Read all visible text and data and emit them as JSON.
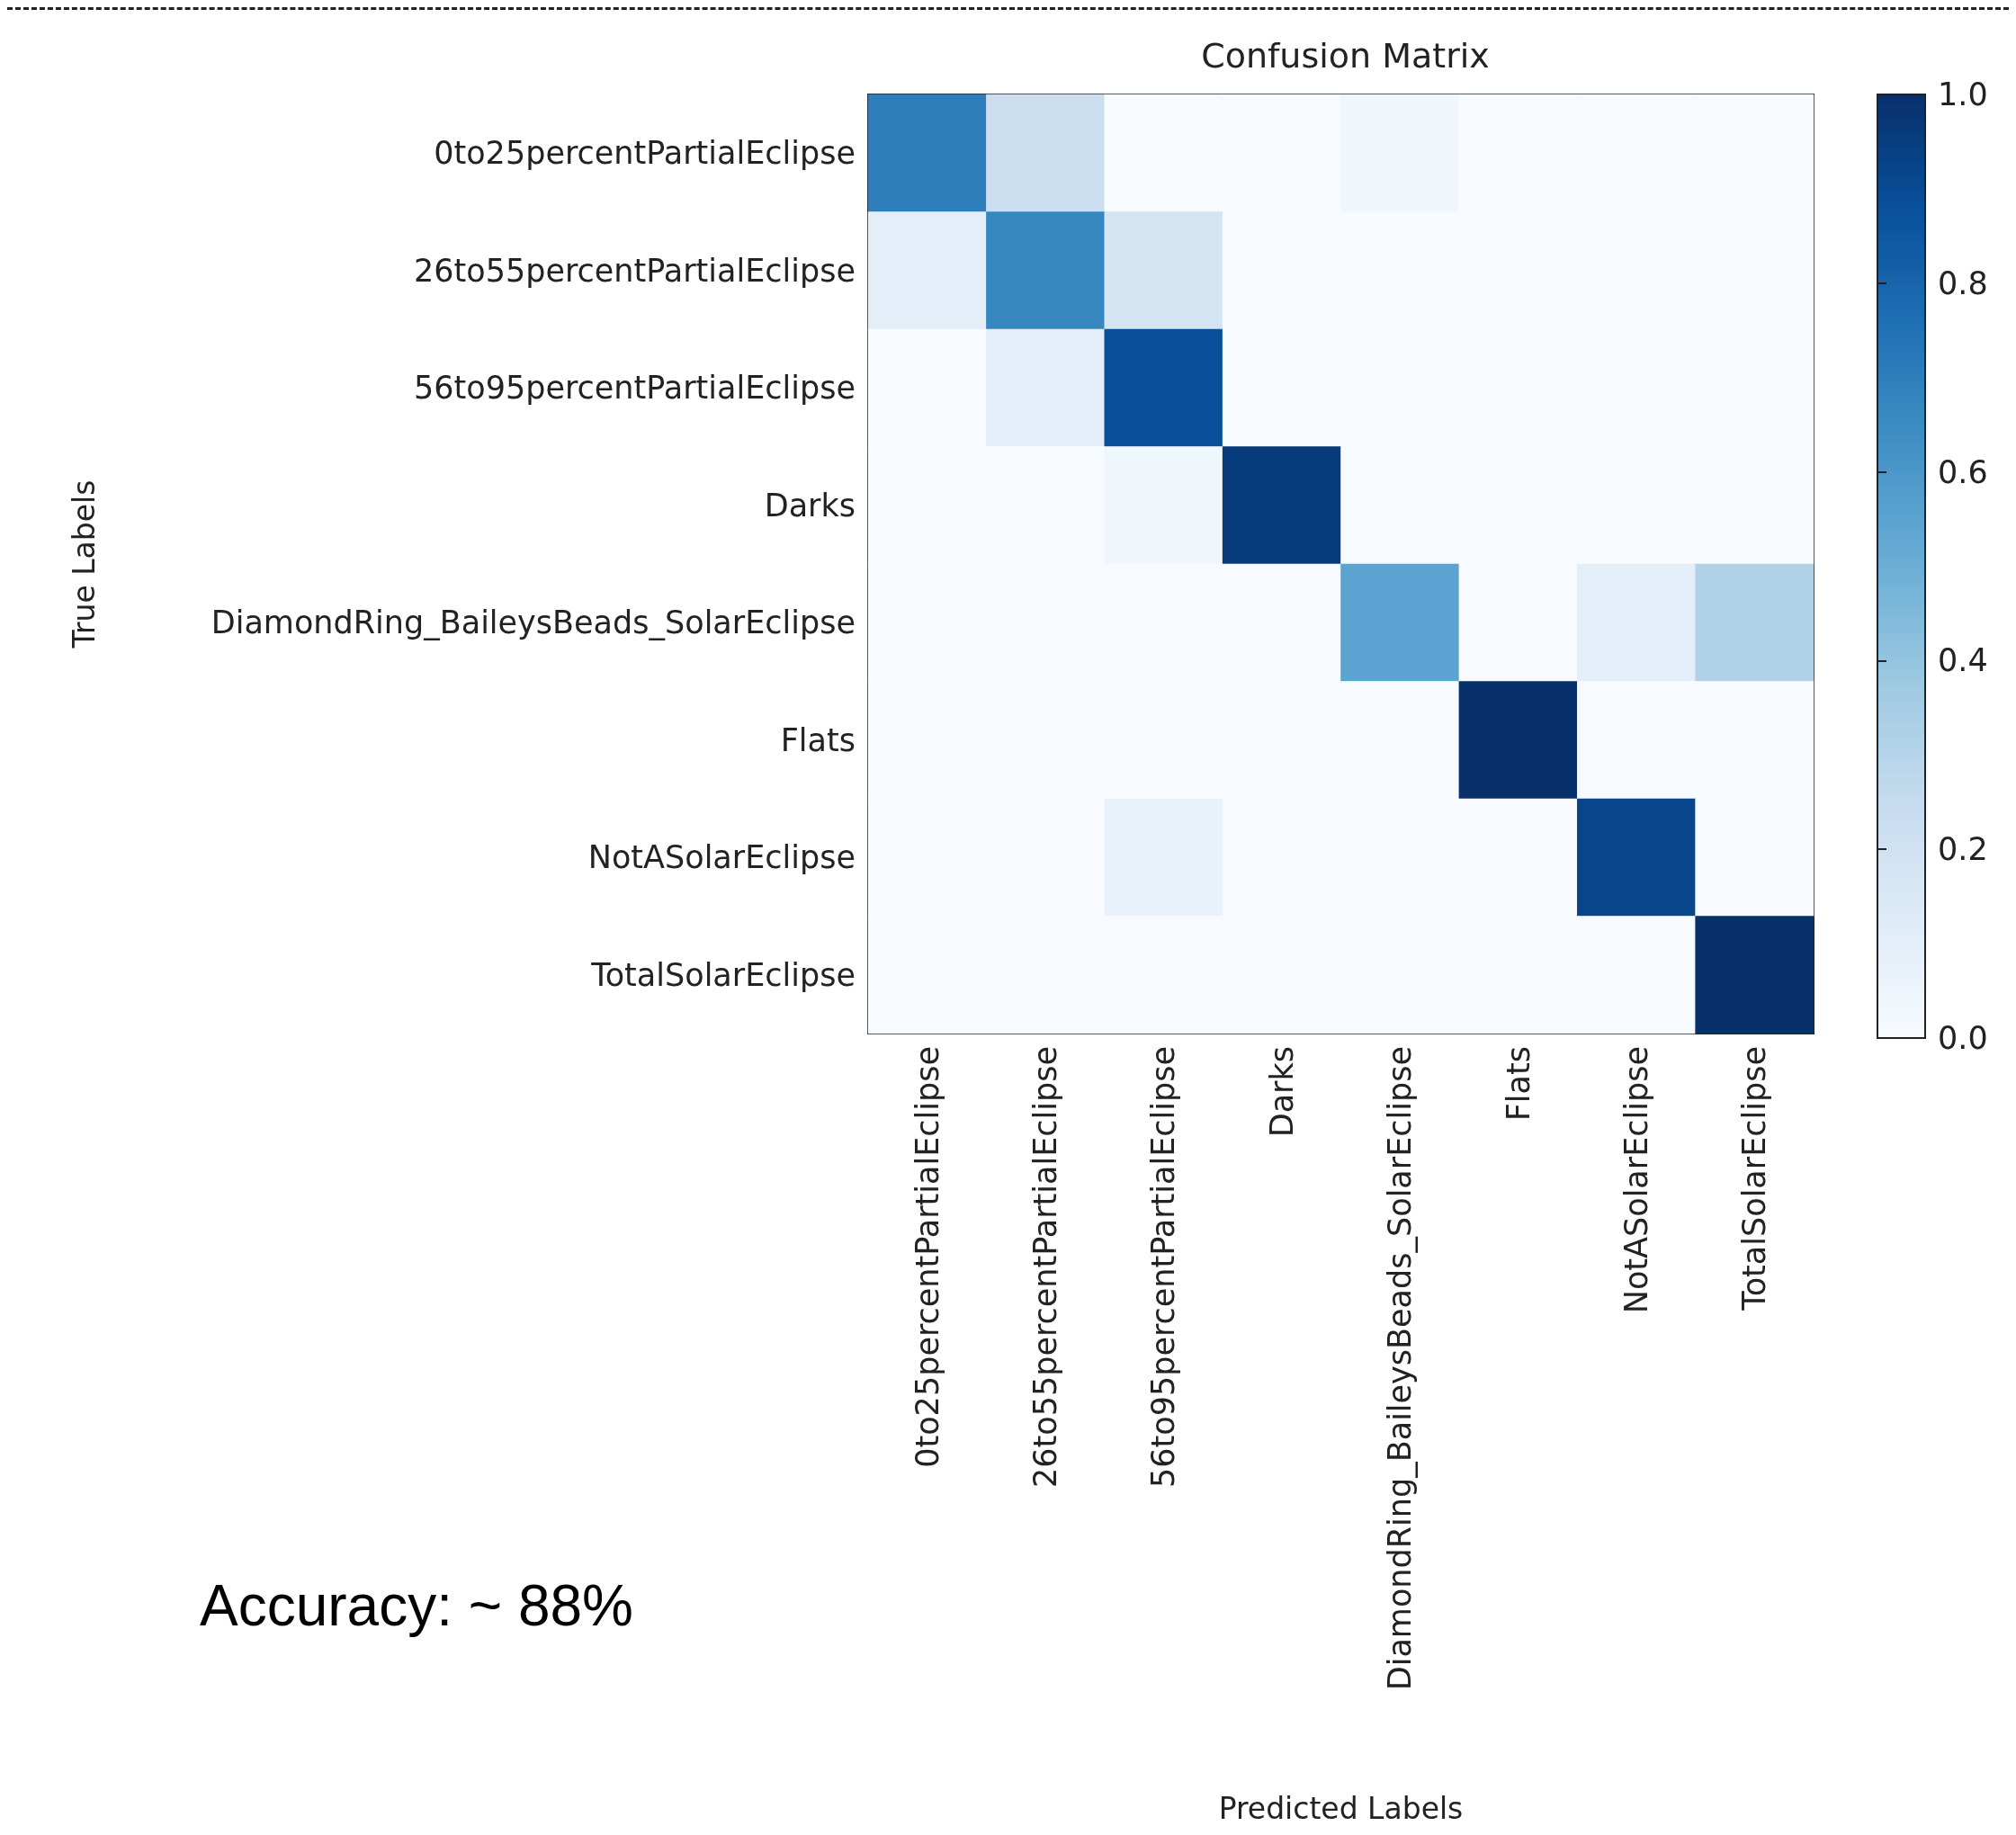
{
  "chart_data": {
    "type": "heatmap",
    "title": "Confusion Matrix",
    "xlabel": "Predicted Labels",
    "ylabel": "True Labels",
    "categories": [
      "0to25percentPartialEclipse",
      "26to55percentPartialEclipse",
      "56to95percentPartialEclipse",
      "Darks",
      "DiamondRing_BaileysBeads_SolarEclipse",
      "Flats",
      "NotASolarEclipse",
      "TotalSolarEclipse"
    ],
    "y_categories": [
      "0to25percentPartialEclipse",
      "26to55percentPartialEclipse",
      "56to95percentPartialEclipse",
      "Darks",
      "DiamondRing_BaileysBeads_SolarEclipse",
      "Flats",
      "NotASolarEclipse",
      "TotalSolarEclipse"
    ],
    "cells": [
      [
        0.7,
        0.22,
        0,
        0,
        0.04,
        0,
        0,
        0
      ],
      [
        0.1,
        0.67,
        0.18,
        0,
        0,
        0,
        0,
        0
      ],
      [
        0,
        0.1,
        0.88,
        0,
        0,
        0,
        0,
        0
      ],
      [
        0,
        0,
        0.04,
        0.96,
        0,
        0,
        0,
        0
      ],
      [
        0,
        0,
        0,
        0,
        0.55,
        0,
        0.1,
        0.32
      ],
      [
        0,
        0,
        0,
        0,
        0,
        1.0,
        0,
        0
      ],
      [
        0,
        0,
        0.07,
        0,
        0,
        0,
        0.92,
        0
      ],
      [
        0,
        0,
        0,
        0,
        0,
        0,
        0,
        1.0
      ]
    ],
    "clim": [
      0,
      1
    ],
    "cticks": [
      {
        "value": 0,
        "label": "0.0"
      },
      {
        "value": 0.2,
        "label": "0.2"
      },
      {
        "value": 0.4,
        "label": "0.4"
      },
      {
        "value": 0.6,
        "label": "0.6"
      },
      {
        "value": 0.8,
        "label": "0.8"
      },
      {
        "value": 1,
        "label": "1.0"
      }
    ],
    "annotations": [
      "Accuracy: ~ 88%"
    ]
  }
}
